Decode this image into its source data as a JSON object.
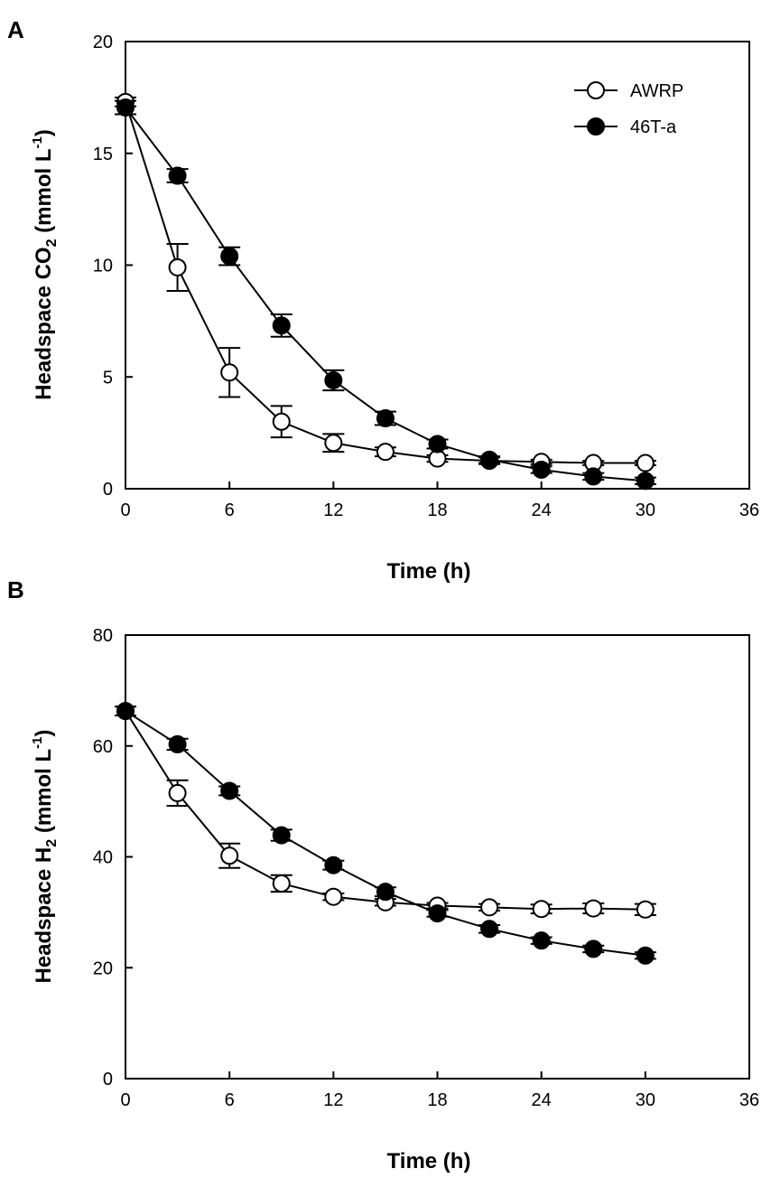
{
  "chart_data": [
    {
      "type": "line",
      "panel_label": "A",
      "title": "",
      "xlabel": "Time (h)",
      "ylabel_main": "Headspace CO",
      "ylabel_sub": "2",
      "ylabel_unit_main": " (mmol L",
      "ylabel_unit_sup": "-1",
      "ylabel_close": ")",
      "xlim": [
        0,
        36
      ],
      "ylim": [
        0,
        20
      ],
      "xticks": [
        0,
        6,
        12,
        18,
        24,
        30,
        36
      ],
      "yticks": [
        0,
        5,
        10,
        15,
        20
      ],
      "legend_position": "top-right",
      "series": [
        {
          "name": "AWRP",
          "marker": "open-circle",
          "x": [
            0,
            3,
            6,
            9,
            12,
            15,
            18,
            21,
            24,
            27,
            30
          ],
          "y": [
            17.3,
            9.9,
            5.2,
            3.0,
            2.05,
            1.65,
            1.35,
            1.25,
            1.2,
            1.15,
            1.15
          ],
          "err": [
            0.2,
            1.05,
            1.1,
            0.7,
            0.4,
            0.2,
            0.15,
            0.15,
            0.1,
            0.1,
            0.1
          ]
        },
        {
          "name": "46T-a",
          "marker": "filled-circle",
          "x": [
            0,
            3,
            6,
            9,
            12,
            15,
            18,
            21,
            24,
            27,
            30
          ],
          "y": [
            17.05,
            14.0,
            10.4,
            7.3,
            4.85,
            3.15,
            2.0,
            1.3,
            0.85,
            0.55,
            0.35
          ],
          "err": [
            0.3,
            0.3,
            0.4,
            0.5,
            0.45,
            0.3,
            0.2,
            0.15,
            0.15,
            0.15,
            0.15
          ]
        }
      ]
    },
    {
      "type": "line",
      "panel_label": "B",
      "title": "",
      "xlabel": "Time (h)",
      "ylabel_main": "Headspace H",
      "ylabel_sub": "2",
      "ylabel_unit_main": " (mmol L",
      "ylabel_unit_sup": "-1",
      "ylabel_close": ")",
      "xlim": [
        0,
        36
      ],
      "ylim": [
        0,
        80
      ],
      "xticks": [
        0,
        6,
        12,
        18,
        24,
        30,
        36
      ],
      "yticks": [
        0,
        20,
        40,
        60,
        80
      ],
      "series": [
        {
          "name": "AWRP",
          "marker": "open-circle",
          "x": [
            0,
            3,
            6,
            9,
            12,
            15,
            18,
            21,
            24,
            27,
            30
          ],
          "y": [
            66.3,
            51.5,
            40.2,
            35.2,
            32.8,
            31.8,
            31.2,
            30.9,
            30.6,
            30.7,
            30.5
          ],
          "err": [
            0.8,
            2.3,
            2.2,
            1.5,
            0.6,
            0.6,
            0.5,
            0.6,
            0.8,
            0.9,
            1.0
          ]
        },
        {
          "name": "46T-a",
          "marker": "filled-circle",
          "x": [
            0,
            3,
            6,
            9,
            12,
            15,
            18,
            21,
            24,
            27,
            30
          ],
          "y": [
            66.3,
            60.3,
            51.9,
            43.9,
            38.5,
            33.7,
            29.8,
            27.0,
            24.9,
            23.4,
            22.2
          ],
          "err": [
            0.8,
            1.0,
            0.8,
            1.0,
            0.8,
            0.8,
            0.6,
            0.7,
            0.6,
            0.6,
            0.6
          ]
        }
      ]
    }
  ]
}
